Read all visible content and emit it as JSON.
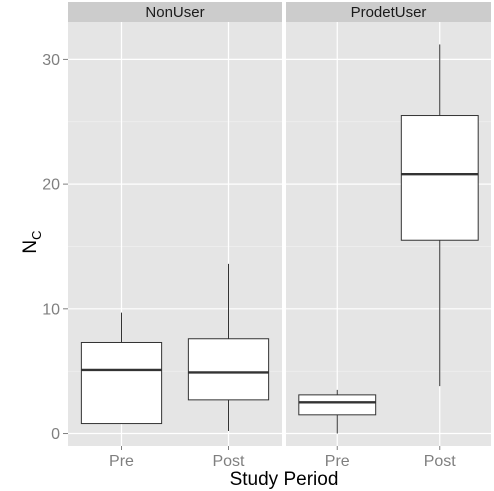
{
  "chart_data": {
    "type": "boxplot",
    "xlabel": "Study Period",
    "ylabel": "N",
    "ylabel_subscript": "C",
    "ylim": [
      -1,
      33
    ],
    "yticks": [
      0,
      10,
      20,
      30
    ],
    "categories": [
      "Pre",
      "Post"
    ],
    "grid": true,
    "panels": [
      {
        "name": "NonUser",
        "boxes": [
          {
            "category": "Pre",
            "min": 0.8,
            "q1": 0.8,
            "median": 5.1,
            "q3": 7.3,
            "max": 9.7
          },
          {
            "category": "Post",
            "min": 0.2,
            "q1": 2.7,
            "median": 4.9,
            "q3": 7.6,
            "max": 13.6
          }
        ]
      },
      {
        "name": "ProdetUser",
        "boxes": [
          {
            "category": "Pre",
            "min": 0.0,
            "q1": 1.5,
            "median": 2.5,
            "q3": 3.1,
            "max": 3.5
          },
          {
            "category": "Post",
            "min": 3.8,
            "q1": 15.5,
            "median": 20.8,
            "q3": 25.5,
            "max": 31.2
          }
        ]
      }
    ]
  }
}
